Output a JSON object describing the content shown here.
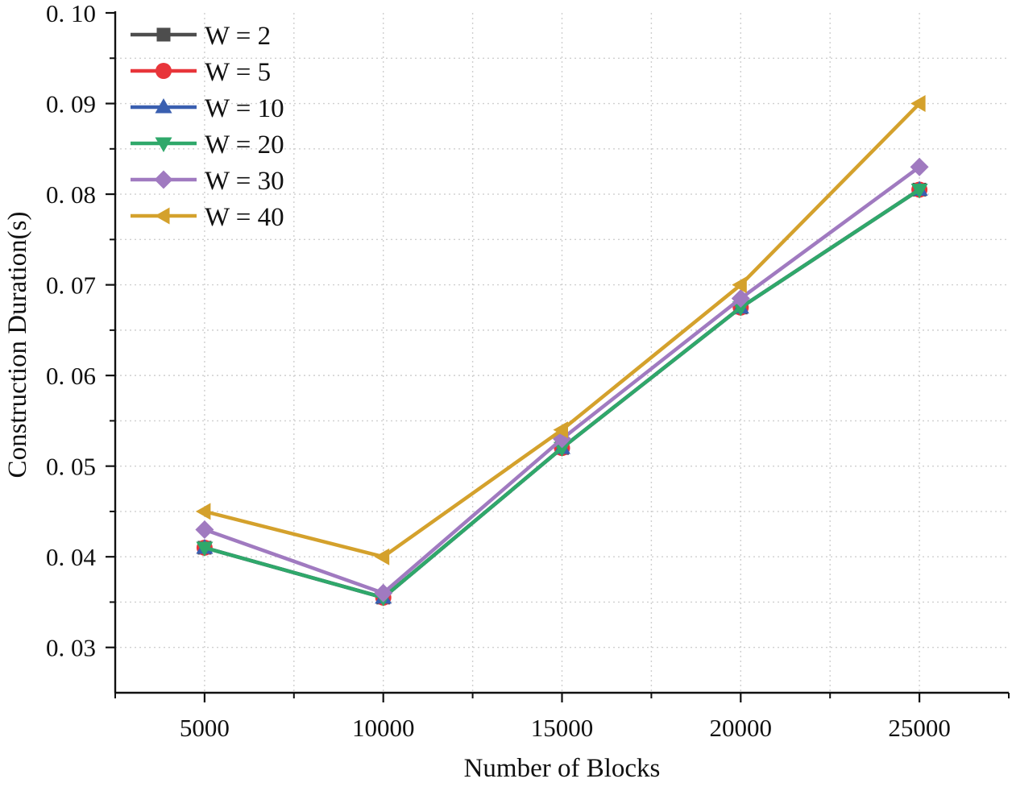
{
  "chart_data": {
    "type": "line",
    "title": "",
    "xlabel": "Number of Blocks",
    "ylabel": "Construction Duration(s)",
    "x": [
      5000,
      10000,
      15000,
      20000,
      25000
    ],
    "xlim": [
      2500,
      27500
    ],
    "ylim": [
      0.025,
      0.1
    ],
    "xticks": [
      5000,
      10000,
      15000,
      20000,
      25000
    ],
    "xtick_labels": [
      "5000",
      "10000",
      "15000",
      "20000",
      "25000"
    ],
    "yticks": [
      0.03,
      0.04,
      0.05,
      0.06,
      0.07,
      0.08,
      0.09,
      0.1
    ],
    "ytick_labels": [
      "0. 03",
      "0. 04",
      "0. 05",
      "0. 06",
      "0. 07",
      "0. 08",
      "0. 09",
      "0. 10"
    ],
    "grid": true,
    "legend_position": "top-left",
    "series": [
      {
        "name": "W = 2",
        "color": "#4d4d4d",
        "marker": "square",
        "values": [
          0.041,
          0.0355,
          0.052,
          0.0675,
          0.0805
        ]
      },
      {
        "name": "W = 5",
        "color": "#e8353a",
        "marker": "circle",
        "values": [
          0.041,
          0.0355,
          0.052,
          0.0675,
          0.0805
        ]
      },
      {
        "name": "W = 10",
        "color": "#3a5fb0",
        "marker": "triangle-up",
        "values": [
          0.041,
          0.0355,
          0.052,
          0.0675,
          0.0805
        ]
      },
      {
        "name": "W = 20",
        "color": "#2fa86a",
        "marker": "triangle-down",
        "values": [
          0.041,
          0.0355,
          0.052,
          0.0675,
          0.0805
        ]
      },
      {
        "name": "W = 30",
        "color": "#a07ac0",
        "marker": "diamond",
        "values": [
          0.043,
          0.036,
          0.053,
          0.0685,
          0.083
        ]
      },
      {
        "name": "W = 40",
        "color": "#d4a12c",
        "marker": "triangle-left",
        "values": [
          0.045,
          0.04,
          0.054,
          0.07,
          0.09
        ]
      }
    ]
  }
}
